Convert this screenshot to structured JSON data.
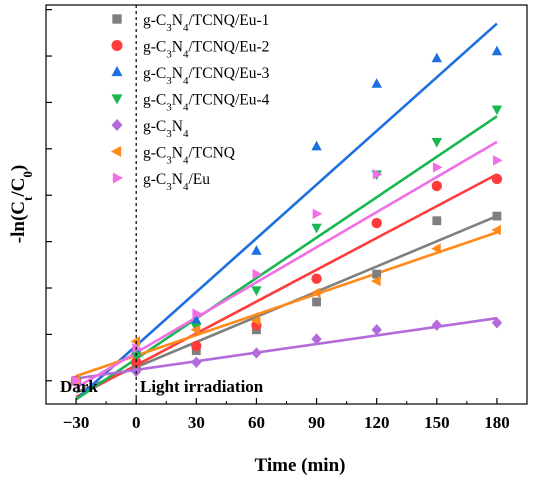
{
  "chart_data": {
    "type": "scatter",
    "xlabel": "Time (min)",
    "ylabel": "-ln(Cₜ/C₀)",
    "xlim": [
      -45,
      195
    ],
    "ylim": [
      -0.1,
      1.62
    ],
    "xticks": [
      -30,
      0,
      30,
      60,
      90,
      120,
      150,
      180
    ],
    "yticks_labeled": false,
    "grid": false,
    "legend_position": "top-left",
    "marker_vline_x": 0,
    "annotations": [
      {
        "text": "Dark"
      },
      {
        "text": "Light irradiation"
      }
    ],
    "x": [
      -30,
      0,
      30,
      60,
      90,
      120,
      150,
      180
    ],
    "series": [
      {
        "name": "g-C3N4/TCNQ/Eu-1",
        "name_main": "g-C",
        "sub1": "3",
        "mid": "N",
        "sub2": "4",
        "rest": "/TCNQ/Eu-1",
        "color": "#7f7f7f",
        "marker": "square",
        "values": [
          0.0,
          0.07,
          0.13,
          0.22,
          0.34,
          0.46,
          0.69,
          0.71
        ],
        "fit_start": [
          -30,
          -0.05
        ],
        "fit_end": [
          180,
          0.71
        ]
      },
      {
        "name": "g-C3N4/TCNQ/Eu-2",
        "name_main": "g-C",
        "sub1": "3",
        "mid": "N",
        "sub2": "4",
        "rest": "/TCNQ/Eu-2",
        "color": "#ff3b3b",
        "marker": "circle",
        "values": [
          0.0,
          0.08,
          0.15,
          0.24,
          0.44,
          0.68,
          0.84,
          0.87
        ],
        "fit_start": [
          -30,
          -0.07
        ],
        "fit_end": [
          180,
          0.89
        ]
      },
      {
        "name": "g-C3N4/TCNQ/Eu-3",
        "name_main": "g-C",
        "sub1": "3",
        "mid": "N",
        "sub2": "4",
        "rest": "/TCNQ/Eu-3",
        "color": "#1e6fe0",
        "marker": "triangle-up",
        "values": [
          0.0,
          0.13,
          0.26,
          0.56,
          1.01,
          1.28,
          1.39,
          1.42
        ],
        "fit_start": [
          -30,
          -0.08
        ],
        "fit_end": [
          180,
          1.54
        ]
      },
      {
        "name": "g-C3N4/TCNQ/Eu-4",
        "name_main": "g-C",
        "sub1": "3",
        "mid": "N",
        "sub2": "4",
        "rest": "/TCNQ/Eu-4",
        "color": "#17b850",
        "marker": "triangle-down",
        "values": [
          0.0,
          0.11,
          0.23,
          0.39,
          0.66,
          0.89,
          1.03,
          1.17
        ],
        "fit_start": [
          -30,
          -0.08
        ],
        "fit_end": [
          180,
          1.14
        ]
      },
      {
        "name": "g-C3N4",
        "name_main": "g-C",
        "sub1": "3",
        "mid": "N",
        "sub2": "4",
        "rest": "",
        "color": "#b36bdb",
        "marker": "diamond",
        "values": [
          0.0,
          0.04,
          0.08,
          0.12,
          0.18,
          0.22,
          0.24,
          0.25
        ],
        "fit_start": [
          -30,
          0.01
        ],
        "fit_end": [
          180,
          0.27
        ]
      },
      {
        "name": "g-C3N4/TCNQ",
        "name_main": "g-C",
        "sub1": "3",
        "mid": "N",
        "sub2": "4",
        "rest": "/TCNQ",
        "color": "#ff8a1a",
        "marker": "triangle-left",
        "values": [
          0.0,
          0.17,
          0.22,
          0.26,
          0.38,
          0.43,
          0.57,
          0.65
        ],
        "fit_start": [
          -30,
          0.02
        ],
        "fit_end": [
          180,
          0.64
        ]
      },
      {
        "name": "g-C3N4/Eu",
        "name_main": "g-C",
        "sub1": "3",
        "mid": "N",
        "sub2": "4",
        "rest": "/Eu",
        "color": "#f26ee6",
        "marker": "triangle-right",
        "values": [
          0.0,
          0.14,
          0.29,
          0.46,
          0.72,
          0.89,
          0.92,
          0.95
        ],
        "fit_start": [
          -30,
          -0.03
        ],
        "fit_end": [
          180,
          1.03
        ]
      }
    ]
  }
}
